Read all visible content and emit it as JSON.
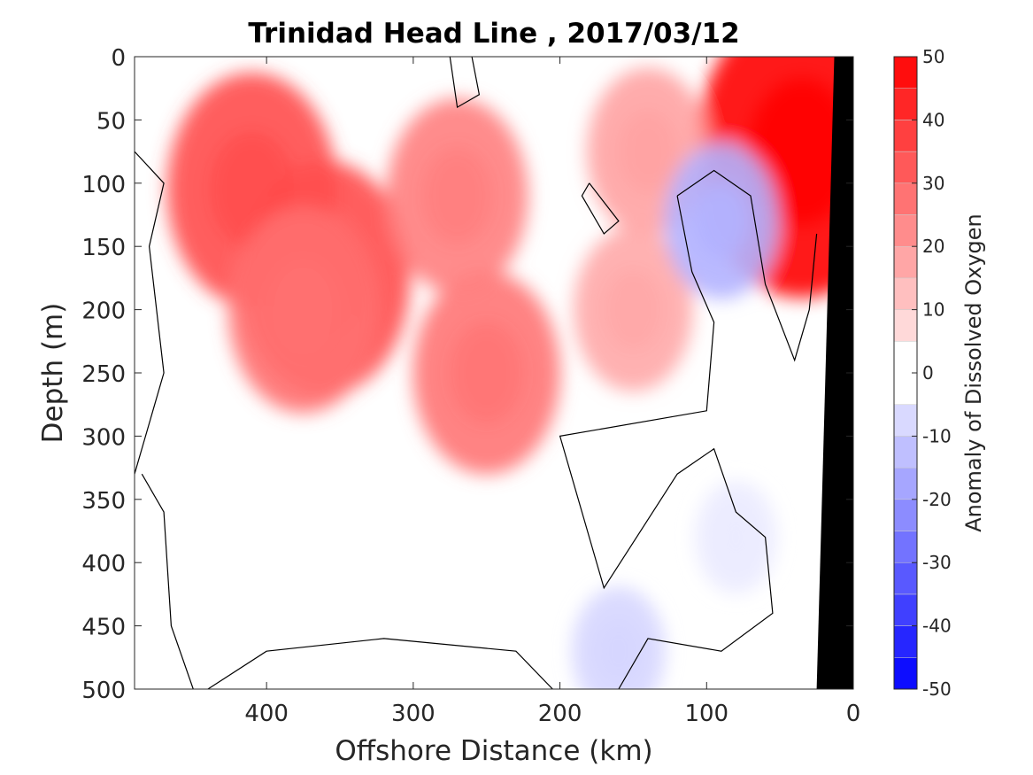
{
  "chart_data": {
    "type": "heatmap",
    "title": "Trinidad Head Line , 2017/03/12",
    "xlabel": "Offshore Distance (km)",
    "ylabel": "Depth (m)",
    "colorbar_label": "Anomaly of Dissolved Oxygen",
    "xlim": [
      490,
      0
    ],
    "ylim": [
      0,
      500
    ],
    "y_reversed": true,
    "x_reversed": true,
    "x_ticks": [
      400,
      300,
      200,
      100,
      0
    ],
    "y_ticks": [
      0,
      50,
      100,
      150,
      200,
      250,
      300,
      350,
      400,
      450,
      500
    ],
    "colorbar_ticks": [
      50,
      40,
      30,
      20,
      10,
      0,
      -10,
      -20,
      -30,
      -40,
      -50
    ],
    "color_levels": [
      -50,
      -45,
      -40,
      -35,
      -30,
      -25,
      -20,
      -15,
      -10,
      -5,
      5,
      10,
      15,
      20,
      25,
      30,
      35,
      40,
      45,
      50
    ],
    "colormap": {
      "negative": "#0000ff",
      "zero": "#ffffff",
      "positive": "#ff0000"
    },
    "zero_contour": true,
    "bathymetry_color": "#000000",
    "bathymetry_bottom": [
      [
        13,
        0
      ],
      [
        25,
        500
      ]
    ],
    "grid": false,
    "anomaly_features": [
      {
        "x": 410,
        "y": 105,
        "value": 35
      },
      {
        "x": 360,
        "y": 175,
        "value": 35
      },
      {
        "x": 375,
        "y": 200,
        "value": 28
      },
      {
        "x": 250,
        "y": 250,
        "value": 27
      },
      {
        "x": 270,
        "y": 110,
        "value": 25
      },
      {
        "x": 35,
        "y": 75,
        "value": 50
      },
      {
        "x": 140,
        "y": 75,
        "value": 18
      },
      {
        "x": 150,
        "y": 200,
        "value": 17
      },
      {
        "x": 90,
        "y": 130,
        "value": -15
      },
      {
        "x": 80,
        "y": 380,
        "value": -4
      },
      {
        "x": 160,
        "y": 470,
        "value": -8
      }
    ]
  }
}
